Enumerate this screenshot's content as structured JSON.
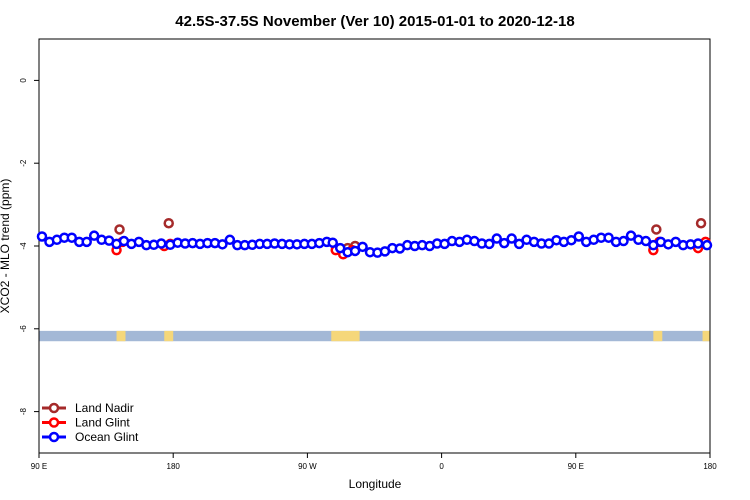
{
  "chart_data": {
    "type": "scatter",
    "title": "42.5S-37.5S November (Ver 10)   2015-01-01 to 2020-12-18",
    "xlabel": "Longitude",
    "ylabel": "XCO2 - MLO trend (ppm)",
    "xlim": [
      90,
      540
    ],
    "ylim": [
      -9.0,
      1.0
    ],
    "x_ticks": [
      {
        "value": 90,
        "label": "90 E"
      },
      {
        "value": 180,
        "label": "180"
      },
      {
        "value": 270,
        "label": "90 W"
      },
      {
        "value": 360,
        "label": "0"
      },
      {
        "value": 450,
        "label": "90 E"
      },
      {
        "value": 540,
        "label": "180"
      }
    ],
    "y_ticks": [
      {
        "value": 0,
        "label": "0"
      },
      {
        "value": -2,
        "label": "-2"
      },
      {
        "value": -4,
        "label": "-4"
      },
      {
        "value": -6,
        "label": "-6"
      },
      {
        "value": -8,
        "label": "-8"
      }
    ],
    "legend_position": "bottom-left",
    "series": [
      {
        "name": "Land Nadir",
        "color": "#a52a2a",
        "points": [
          [
            144,
            -3.6
          ],
          [
            177,
            -3.45
          ],
          [
            297,
            -4.05
          ],
          [
            302,
            -4.0
          ],
          [
            504,
            -3.6
          ],
          [
            534,
            -3.45
          ]
        ]
      },
      {
        "name": "Land Glint",
        "color": "#ff0000",
        "points": [
          [
            142,
            -4.1
          ],
          [
            146,
            -3.9
          ],
          [
            174,
            -4.0
          ],
          [
            178,
            -3.95
          ],
          [
            289,
            -4.1
          ],
          [
            294,
            -4.2
          ],
          [
            300,
            -4.1
          ],
          [
            502,
            -4.1
          ],
          [
            506,
            -3.9
          ],
          [
            532,
            -4.05
          ],
          [
            537,
            -3.9
          ]
        ]
      },
      {
        "name": "Ocean Glint",
        "color": "#0000ff",
        "points": [
          [
            92,
            -3.77
          ],
          [
            97,
            -3.9
          ],
          [
            102,
            -3.85
          ],
          [
            107,
            -3.8
          ],
          [
            112,
            -3.8
          ],
          [
            117,
            -3.9
          ],
          [
            122,
            -3.9
          ],
          [
            127,
            -3.75
          ],
          [
            132,
            -3.85
          ],
          [
            137,
            -3.87
          ],
          [
            142,
            -3.95
          ],
          [
            147,
            -3.88
          ],
          [
            152,
            -3.95
          ],
          [
            157,
            -3.9
          ],
          [
            162,
            -3.98
          ],
          [
            167,
            -3.97
          ],
          [
            172,
            -3.94
          ],
          [
            178,
            -3.97
          ],
          [
            183,
            -3.92
          ],
          [
            188,
            -3.94
          ],
          [
            193,
            -3.93
          ],
          [
            198,
            -3.95
          ],
          [
            203,
            -3.93
          ],
          [
            208,
            -3.93
          ],
          [
            213,
            -3.96
          ],
          [
            218,
            -3.85
          ],
          [
            223,
            -3.98
          ],
          [
            228,
            -3.98
          ],
          [
            233,
            -3.97
          ],
          [
            238,
            -3.95
          ],
          [
            243,
            -3.95
          ],
          [
            248,
            -3.94
          ],
          [
            253,
            -3.95
          ],
          [
            258,
            -3.96
          ],
          [
            263,
            -3.96
          ],
          [
            268,
            -3.95
          ],
          [
            273,
            -3.95
          ],
          [
            278,
            -3.93
          ],
          [
            283,
            -3.9
          ],
          [
            287,
            -3.92
          ],
          [
            292,
            -4.05
          ],
          [
            297,
            -4.15
          ],
          [
            302,
            -4.12
          ],
          [
            307,
            -4.02
          ],
          [
            312,
            -4.15
          ],
          [
            317,
            -4.16
          ],
          [
            322,
            -4.13
          ],
          [
            327,
            -4.05
          ],
          [
            332,
            -4.06
          ],
          [
            337,
            -3.98
          ],
          [
            342,
            -4.0
          ],
          [
            347,
            -3.98
          ],
          [
            352,
            -4.0
          ],
          [
            357,
            -3.94
          ],
          [
            362,
            -3.95
          ],
          [
            367,
            -3.88
          ],
          [
            372,
            -3.9
          ],
          [
            377,
            -3.85
          ],
          [
            382,
            -3.88
          ],
          [
            387,
            -3.94
          ],
          [
            392,
            -3.95
          ],
          [
            397,
            -3.82
          ],
          [
            402,
            -3.93
          ],
          [
            407,
            -3.82
          ],
          [
            412,
            -3.95
          ],
          [
            417,
            -3.85
          ],
          [
            422,
            -3.9
          ],
          [
            427,
            -3.94
          ],
          [
            432,
            -3.94
          ],
          [
            437,
            -3.86
          ],
          [
            442,
            -3.9
          ],
          [
            447,
            -3.86
          ],
          [
            452,
            -3.77
          ],
          [
            457,
            -3.9
          ],
          [
            462,
            -3.85
          ],
          [
            467,
            -3.8
          ],
          [
            472,
            -3.8
          ],
          [
            477,
            -3.9
          ],
          [
            482,
            -3.88
          ],
          [
            487,
            -3.75
          ],
          [
            492,
            -3.85
          ],
          [
            497,
            -3.88
          ],
          [
            502,
            -3.98
          ],
          [
            507,
            -3.9
          ],
          [
            512,
            -3.96
          ],
          [
            517,
            -3.9
          ],
          [
            522,
            -3.98
          ],
          [
            527,
            -3.96
          ],
          [
            532,
            -3.94
          ],
          [
            538,
            -3.98
          ]
        ]
      }
    ],
    "surface_bar": {
      "y_range": [
        -6.3,
        -6.05
      ],
      "ocean_color": "#a3b8d6",
      "land_color": "#f5d77a",
      "land_segments": [
        [
          142,
          148
        ],
        [
          174,
          180
        ],
        [
          286,
          305
        ],
        [
          502,
          508
        ],
        [
          535,
          540
        ]
      ]
    }
  }
}
